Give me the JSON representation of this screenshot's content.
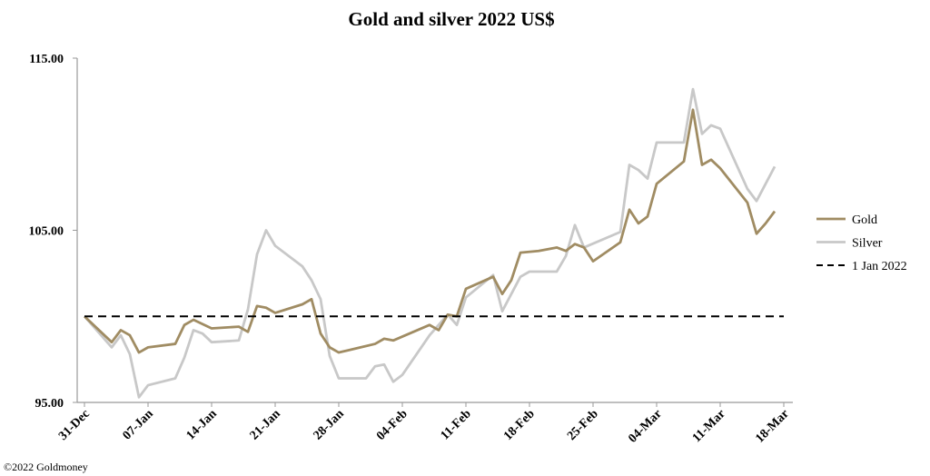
{
  "chart_data": {
    "type": "line",
    "title": "Gold and silver 2022  US$",
    "xlabel": "",
    "ylabel": "",
    "x_unit": "days since 31-Dec-2021",
    "xlim": [
      0,
      77
    ],
    "ylim": [
      95,
      115
    ],
    "yticks": [
      95,
      105,
      115
    ],
    "ytick_labels": [
      "95.00",
      "105.00",
      "115.00"
    ],
    "xticks": [
      0,
      7,
      14,
      21,
      28,
      35,
      42,
      49,
      56,
      63,
      70,
      77
    ],
    "xtick_labels": [
      "31-Dec",
      "07-Jan",
      "14-Jan",
      "21-Jan",
      "28-Jan",
      "04-Feb",
      "11-Feb",
      "18-Feb",
      "25-Feb",
      "04-Mar",
      "11-Mar",
      "18-Mar"
    ],
    "grid": false,
    "legend_position": "right",
    "series": [
      {
        "name": "Gold",
        "color": "#a08c63",
        "x": [
          0,
          3,
          4,
          5,
          6,
          7,
          10,
          11,
          12,
          14,
          17,
          18,
          19,
          20,
          21,
          24,
          25,
          26,
          27,
          28,
          32,
          33,
          34,
          38,
          39,
          40,
          41,
          42,
          45,
          46,
          47,
          48,
          50,
          52,
          53,
          54,
          55,
          56,
          59,
          60,
          61,
          62,
          63,
          66,
          67,
          68,
          69,
          70,
          73,
          74,
          75,
          76
        ],
        "y": [
          100,
          98.5,
          99.2,
          98.9,
          97.9,
          98.2,
          98.4,
          99.5,
          99.8,
          99.3,
          99.4,
          99.1,
          100.6,
          100.5,
          100.2,
          100.7,
          101.0,
          99.0,
          98.2,
          97.9,
          98.4,
          98.7,
          98.6,
          99.5,
          99.2,
          100.1,
          100.0,
          101.6,
          102.3,
          101.3,
          102.1,
          103.7,
          103.8,
          104.0,
          103.8,
          104.2,
          104.0,
          103.2,
          104.3,
          106.2,
          105.4,
          105.8,
          107.7,
          109.0,
          112.0,
          108.8,
          109.1,
          108.6,
          106.6,
          104.8,
          105.4,
          106.1
        ]
      },
      {
        "name": "Silver",
        "color": "#c8c8c8",
        "x": [
          0,
          3,
          4,
          5,
          6,
          7,
          10,
          11,
          12,
          13,
          14,
          17,
          18,
          19,
          20,
          21,
          24,
          25,
          26,
          27,
          28,
          31,
          32,
          33,
          34,
          35,
          38,
          40,
          41,
          42,
          45,
          46,
          48,
          49,
          52,
          53,
          54,
          55,
          59,
          60,
          61,
          62,
          63,
          66,
          67,
          68,
          69,
          70,
          73,
          74,
          76
        ],
        "y": [
          100,
          98.2,
          98.9,
          97.8,
          95.3,
          96.0,
          96.4,
          97.6,
          99.2,
          99.0,
          98.5,
          98.6,
          100.4,
          103.6,
          105.0,
          104.1,
          102.9,
          102.1,
          101.0,
          97.7,
          96.4,
          96.4,
          97.1,
          97.2,
          96.2,
          96.6,
          98.9,
          100.1,
          99.5,
          101.1,
          102.4,
          100.3,
          102.3,
          102.6,
          102.6,
          103.5,
          105.3,
          104.0,
          104.9,
          108.8,
          108.5,
          108.0,
          110.1,
          110.1,
          113.2,
          110.6,
          111.1,
          110.9,
          107.4,
          106.7,
          108.7
        ]
      },
      {
        "name": "1 Jan 2022",
        "color": "#000000",
        "dashed": true,
        "x": [
          0,
          77
        ],
        "y": [
          100,
          100
        ]
      }
    ]
  },
  "footer": "©2022 Goldmoney"
}
